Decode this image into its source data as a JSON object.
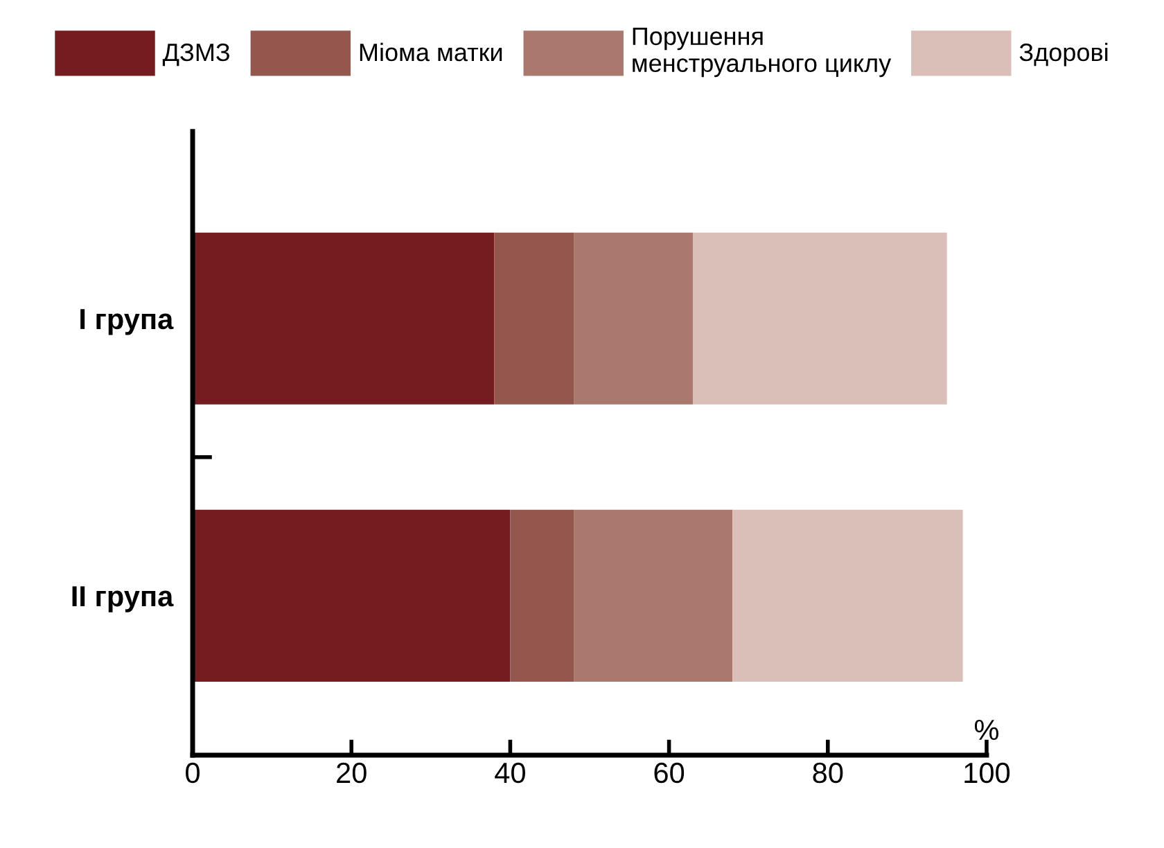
{
  "chart_data": {
    "type": "bar",
    "orientation": "horizontal",
    "stacked": true,
    "xlabel": "%",
    "categories": [
      "I група",
      "II група"
    ],
    "series": [
      {
        "name": "ДЗМЗ",
        "color": "#751c20",
        "values": [
          38,
          40
        ]
      },
      {
        "name": "Міома матки",
        "color": "#93574d",
        "values": [
          10,
          8
        ]
      },
      {
        "name": "Порушення\nменструального циклу",
        "color": "#ab786e",
        "values": [
          15,
          20
        ]
      },
      {
        "name": "Здорові",
        "color": "#d9bfb7",
        "values": [
          32,
          29
        ]
      }
    ],
    "xlim": [
      0,
      100
    ],
    "xticks": [
      0,
      20,
      40,
      60,
      80,
      100
    ],
    "grid": false,
    "legend": "top"
  }
}
